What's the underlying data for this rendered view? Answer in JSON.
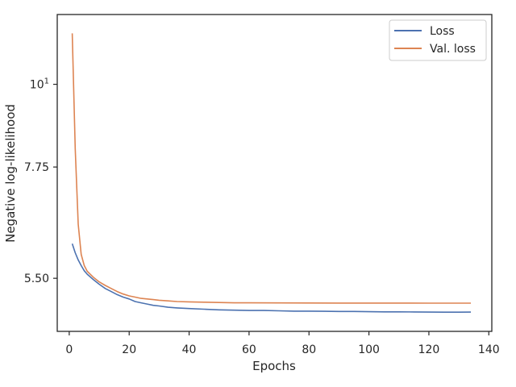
{
  "chart_data": {
    "type": "line",
    "title": "",
    "xlabel": "Epochs",
    "ylabel": "Negative log-likelihood",
    "yscale": "log",
    "xlim": [
      -4,
      141
    ],
    "ylim": [
      4.67,
      12.4
    ],
    "x_ticks": [
      0,
      20,
      40,
      60,
      80,
      100,
      120,
      140
    ],
    "x_tick_labels": [
      "0",
      "20",
      "40",
      "60",
      "80",
      "100",
      "120",
      "140"
    ],
    "y_ticks": [
      10,
      7.75,
      5.5
    ],
    "y_tick_labels": [
      {
        "base": "10",
        "exp": "1"
      },
      {
        "base": "7.75",
        "exp": ""
      },
      {
        "base": "5.50",
        "exp": ""
      }
    ],
    "grid": false,
    "legend_position": "top-right",
    "series": [
      {
        "name": "Loss",
        "color": "#4c72b0",
        "points": [
          [
            1,
            6.12
          ],
          [
            2,
            5.95
          ],
          [
            3,
            5.82
          ],
          [
            4,
            5.72
          ],
          [
            5,
            5.63
          ],
          [
            6,
            5.57
          ],
          [
            8,
            5.48
          ],
          [
            10,
            5.4
          ],
          [
            12,
            5.33
          ],
          [
            14,
            5.28
          ],
          [
            16,
            5.23
          ],
          [
            18,
            5.19
          ],
          [
            20,
            5.16
          ],
          [
            22,
            5.12
          ],
          [
            24,
            5.1
          ],
          [
            26,
            5.08
          ],
          [
            28,
            5.06
          ],
          [
            30,
            5.05
          ],
          [
            33,
            5.03
          ],
          [
            36,
            5.02
          ],
          [
            40,
            5.01
          ],
          [
            45,
            5.0
          ],
          [
            50,
            4.99
          ],
          [
            55,
            4.985
          ],
          [
            60,
            4.98
          ],
          [
            65,
            4.98
          ],
          [
            70,
            4.975
          ],
          [
            75,
            4.97
          ],
          [
            80,
            4.97
          ],
          [
            85,
            4.968
          ],
          [
            90,
            4.965
          ],
          [
            95,
            4.965
          ],
          [
            100,
            4.962
          ],
          [
            105,
            4.96
          ],
          [
            110,
            4.96
          ],
          [
            115,
            4.958
          ],
          [
            120,
            4.956
          ],
          [
            125,
            4.955
          ],
          [
            130,
            4.954
          ],
          [
            134,
            4.956
          ]
        ]
      },
      {
        "name": "Val. loss",
        "color": "#dd8452",
        "points": [
          [
            1,
            11.7
          ],
          [
            2,
            8.2
          ],
          [
            3,
            6.5
          ],
          [
            4,
            5.92
          ],
          [
            5,
            5.72
          ],
          [
            6,
            5.62
          ],
          [
            8,
            5.52
          ],
          [
            10,
            5.44
          ],
          [
            12,
            5.38
          ],
          [
            14,
            5.33
          ],
          [
            16,
            5.28
          ],
          [
            18,
            5.24
          ],
          [
            20,
            5.21
          ],
          [
            22,
            5.19
          ],
          [
            24,
            5.17
          ],
          [
            26,
            5.16
          ],
          [
            28,
            5.15
          ],
          [
            30,
            5.14
          ],
          [
            33,
            5.13
          ],
          [
            36,
            5.12
          ],
          [
            40,
            5.115
          ],
          [
            45,
            5.11
          ],
          [
            50,
            5.105
          ],
          [
            55,
            5.1
          ],
          [
            60,
            5.1
          ],
          [
            70,
            5.098
          ],
          [
            80,
            5.097
          ],
          [
            90,
            5.096
          ],
          [
            100,
            5.095
          ],
          [
            110,
            5.095
          ],
          [
            120,
            5.094
          ],
          [
            134,
            5.094
          ]
        ]
      }
    ]
  }
}
